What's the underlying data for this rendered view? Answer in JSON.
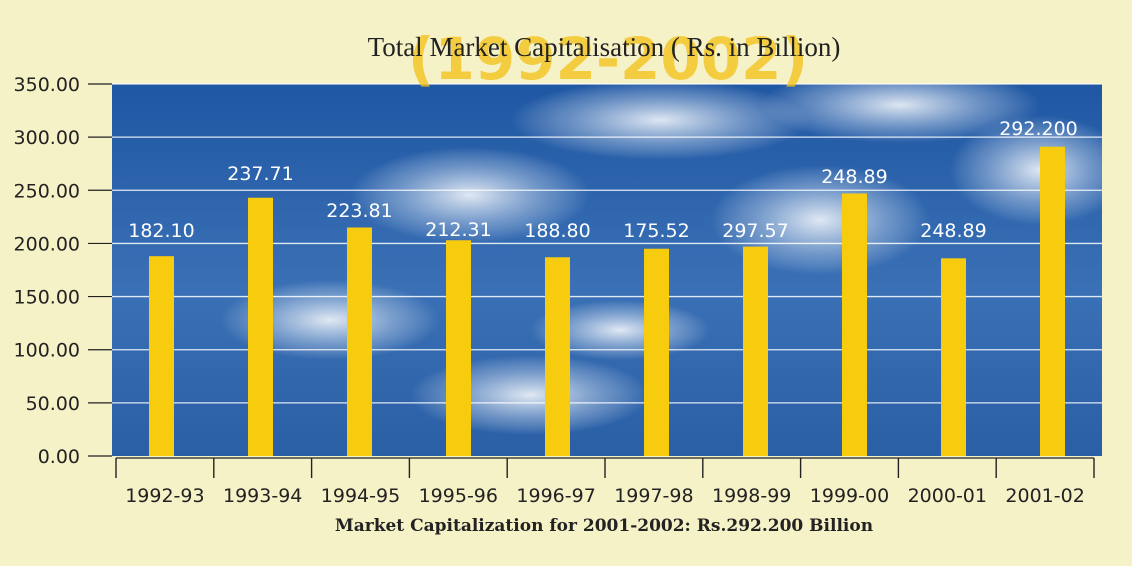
{
  "chart_data": {
    "type": "bar",
    "title": "Total Market Capitalisation ( Rs. in Billion)",
    "subtitle": "(1992-2002)",
    "caption": "Market Capitalization for 2001-2002: Rs.292.200 Billion",
    "xlabel": "",
    "ylabel": "",
    "ylim": [
      0,
      350
    ],
    "yticks": [
      "0.00",
      "50.00",
      "100.00",
      "150.00",
      "200.00",
      "250.00",
      "300.00",
      "350.00"
    ],
    "grid": true,
    "categories": [
      "1992-93",
      "1993-94",
      "1994-95",
      "1995-96",
      "1996-97",
      "1997-98",
      "1998-99",
      "1999-00",
      "2000-01",
      "2001-02"
    ],
    "values": [
      182.1,
      237.71,
      223.81,
      212.31,
      188.8,
      175.52,
      297.57,
      248.89,
      248.89,
      292.2
    ],
    "bar_heights": [
      188,
      243,
      215,
      203,
      187,
      195,
      197,
      247,
      186,
      291
    ],
    "data_labels": [
      "182.10",
      "237.71",
      "223.81",
      "212.31",
      "188.80",
      "175.52",
      "297.57",
      "248.89",
      "248.89",
      "292.200"
    ],
    "colors": {
      "bar": "#f7cc0f",
      "plot_background": "#2e63a8",
      "gridline": "#ffffff",
      "page_background": "#f6f2c8"
    }
  }
}
